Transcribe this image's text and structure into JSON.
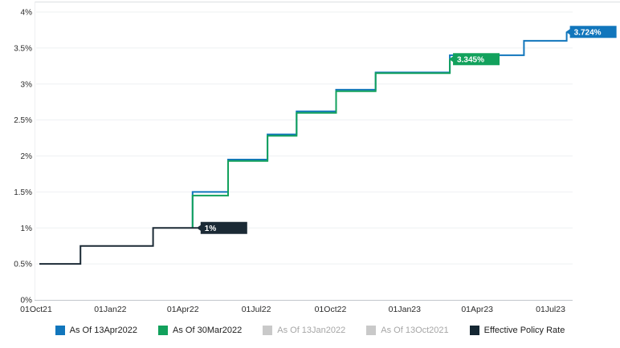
{
  "window": {
    "title": "Policy Rate Expectations Step Chart"
  },
  "colors": {
    "blue": "#1176bc",
    "green": "#12a15c",
    "dark_navy": "#1b2a35",
    "disabled_gray": "#c9c9c9",
    "gridline": "#eef0f2",
    "axis_line": "#c2c7cc",
    "top_border": "#dcdfe2",
    "tick_text": "#2b2b2b",
    "legend_text_enabled": "#1d1d1d",
    "legend_text_disabled": "#a6a6a6"
  },
  "chart_data": {
    "type": "line",
    "subtype": "step",
    "title": "",
    "xlabel": "",
    "ylabel": "",
    "grid": true,
    "legend_position": "bottom",
    "x_axis": {
      "unit": "date",
      "domain_days": [
        0,
        665
      ],
      "ticks": [
        {
          "label": "01Oct21",
          "day": 0
        },
        {
          "label": "01Jan22",
          "day": 92
        },
        {
          "label": "01Apr22",
          "day": 182
        },
        {
          "label": "01Jul22",
          "day": 273
        },
        {
          "label": "01Oct22",
          "day": 365
        },
        {
          "label": "01Jan23",
          "day": 457
        },
        {
          "label": "01Apr23",
          "day": 547
        },
        {
          "label": "01Jul23",
          "day": 638
        }
      ]
    },
    "y_axis": {
      "unit": "percent",
      "range": [
        0,
        4
      ],
      "ticks": [
        {
          "label": "4%",
          "value": 4
        },
        {
          "label": "3.5%",
          "value": 3.5
        },
        {
          "label": "3%",
          "value": 3
        },
        {
          "label": "2.5%",
          "value": 2.5
        },
        {
          "label": "2%",
          "value": 2
        },
        {
          "label": "1.5%",
          "value": 1.5
        },
        {
          "label": "1%",
          "value": 1
        },
        {
          "label": "0.5%",
          "value": 0.5
        },
        {
          "label": "0%",
          "value": 0
        }
      ]
    },
    "series": [
      {
        "name": "As Of 13Apr2022",
        "color": "#1176bc",
        "end_label": {
          "text": "3.724%",
          "bg": "#1176bc"
        },
        "points_day_rate": [
          [
            194,
            1.0
          ],
          [
            194,
            1.5
          ],
          [
            238,
            1.5
          ],
          [
            238,
            1.95
          ],
          [
            287,
            1.95
          ],
          [
            287,
            2.3
          ],
          [
            323,
            2.3
          ],
          [
            323,
            2.62
          ],
          [
            372,
            2.62
          ],
          [
            372,
            2.92
          ],
          [
            421,
            2.92
          ],
          [
            421,
            3.16
          ],
          [
            513,
            3.16
          ],
          [
            513,
            3.4
          ],
          [
            605,
            3.4
          ],
          [
            605,
            3.6
          ],
          [
            658,
            3.6
          ],
          [
            658,
            3.724
          ]
        ]
      },
      {
        "name": "As Of 30Mar2022",
        "color": "#12a15c",
        "end_label": {
          "text": "3.345%",
          "bg": "#12a15c"
        },
        "points_day_rate": [
          [
            194,
            1.0
          ],
          [
            194,
            1.45
          ],
          [
            238,
            1.45
          ],
          [
            238,
            1.93
          ],
          [
            287,
            1.93
          ],
          [
            287,
            2.28
          ],
          [
            323,
            2.28
          ],
          [
            323,
            2.6
          ],
          [
            372,
            2.6
          ],
          [
            372,
            2.9
          ],
          [
            421,
            2.9
          ],
          [
            421,
            3.15
          ],
          [
            513,
            3.15
          ],
          [
            513,
            3.345
          ]
        ]
      },
      {
        "name": "Effective Policy Rate",
        "color": "#1b2a35",
        "end_label": {
          "text": "1%",
          "bg": "#1b2a35"
        },
        "points_day_rate": [
          [
            4,
            0.5
          ],
          [
            55,
            0.5
          ],
          [
            55,
            0.75
          ],
          [
            145,
            0.75
          ],
          [
            145,
            1.0
          ],
          [
            200,
            1.0
          ]
        ]
      }
    ]
  },
  "legend": {
    "items": [
      {
        "label": "As Of 13Apr2022",
        "swatch": "#1176bc",
        "enabled": true
      },
      {
        "label": "As Of 30Mar2022",
        "swatch": "#12a15c",
        "enabled": true
      },
      {
        "label": "As Of 13Jan2022",
        "swatch": "#c9c9c9",
        "enabled": false
      },
      {
        "label": "As Of 13Oct2021",
        "swatch": "#c9c9c9",
        "enabled": false
      },
      {
        "label": "Effective Policy Rate",
        "swatch": "#152733",
        "enabled": true
      }
    ]
  }
}
